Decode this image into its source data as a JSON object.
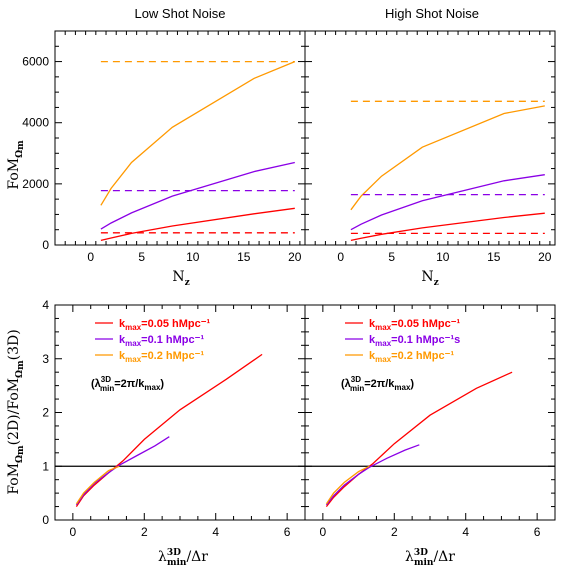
{
  "chart_data": [
    {
      "type": "line",
      "title": "Low Shot Noise",
      "xlabel": "N_z",
      "ylabel": "FoM_Ω_m",
      "xlim": [
        -3.5,
        21
      ],
      "ylim": [
        0,
        7000
      ],
      "xticks": [
        "0",
        "5",
        "10",
        "15",
        "20"
      ],
      "yticks": [
        "0",
        "2000",
        "4000",
        "6000"
      ],
      "series": [
        {
          "color": "#ff0000",
          "dashed": false,
          "x": [
            1,
            2,
            4,
            8,
            16,
            20
          ],
          "y": [
            150,
            230,
            380,
            620,
            1020,
            1200
          ]
        },
        {
          "color": "#8a00e6",
          "dashed": false,
          "x": [
            1,
            2,
            4,
            8,
            16,
            20
          ],
          "y": [
            520,
            720,
            1050,
            1600,
            2400,
            2700
          ]
        },
        {
          "color": "#ff9900",
          "dashed": false,
          "x": [
            1,
            2,
            4,
            8,
            16,
            20
          ],
          "y": [
            1300,
            1850,
            2700,
            3850,
            5450,
            6000
          ]
        },
        {
          "color": "#ff0000",
          "dashed": true,
          "x": [
            1,
            20
          ],
          "y": [
            400,
            400
          ]
        },
        {
          "color": "#8a00e6",
          "dashed": true,
          "x": [
            1,
            20
          ],
          "y": [
            1780,
            1780
          ]
        },
        {
          "color": "#ff9900",
          "dashed": true,
          "x": [
            1,
            20
          ],
          "y": [
            6000,
            6000
          ]
        }
      ]
    },
    {
      "type": "line",
      "title": "High Shot Noise",
      "xlabel": "N_z",
      "ylabel": "",
      "xlim": [
        -3.5,
        21
      ],
      "ylim": [
        0,
        7000
      ],
      "xticks": [
        "0",
        "5",
        "10",
        "15",
        "20"
      ],
      "yticks": [],
      "series": [
        {
          "color": "#ff0000",
          "dashed": false,
          "x": [
            1,
            2,
            4,
            8,
            16,
            20
          ],
          "y": [
            150,
            220,
            350,
            560,
            900,
            1040
          ]
        },
        {
          "color": "#8a00e6",
          "dashed": false,
          "x": [
            1,
            2,
            4,
            8,
            16,
            20
          ],
          "y": [
            500,
            680,
            980,
            1450,
            2100,
            2300
          ]
        },
        {
          "color": "#ff9900",
          "dashed": false,
          "x": [
            1,
            2,
            4,
            8,
            16,
            20
          ],
          "y": [
            1150,
            1600,
            2250,
            3200,
            4300,
            4550
          ]
        },
        {
          "color": "#ff0000",
          "dashed": true,
          "x": [
            1,
            20
          ],
          "y": [
            380,
            380
          ]
        },
        {
          "color": "#8a00e6",
          "dashed": true,
          "x": [
            1,
            20
          ],
          "y": [
            1650,
            1650
          ]
        },
        {
          "color": "#ff9900",
          "dashed": true,
          "x": [
            1,
            20
          ],
          "y": [
            4700,
            4700
          ]
        }
      ]
    },
    {
      "type": "line",
      "title": "",
      "xlabel": "λ_min^3D/Δr",
      "ylabel": "FoM_Ω_m(2D)/FoM_Ω_m(3D)",
      "xlim": [
        -0.5,
        6.5
      ],
      "ylim": [
        0,
        4
      ],
      "hline": 1,
      "xticks": [
        "0",
        "2",
        "4",
        "6"
      ],
      "yticks": [
        "0",
        "1",
        "2",
        "3",
        "4"
      ],
      "legend": [
        {
          "label": "k_max=0.05 hMpc⁻¹",
          "color": "#ff0000"
        },
        {
          "label": "k_max=0.1 hMpc⁻¹",
          "color": "#8a00e6"
        },
        {
          "label": "k_max=0.2 hMpc⁻¹",
          "color": "#ff9900"
        }
      ],
      "note": "(λ_min^3D=2π/k_max)",
      "series": [
        {
          "color": "#ff0000",
          "dashed": false,
          "x": [
            0.1,
            0.3,
            0.6,
            1.0,
            1.4,
            2.0,
            3.0,
            4.3,
            5.3
          ],
          "y": [
            0.25,
            0.45,
            0.65,
            0.88,
            1.1,
            1.5,
            2.05,
            2.62,
            3.08
          ]
        },
        {
          "color": "#8a00e6",
          "dashed": false,
          "x": [
            0.1,
            0.3,
            0.6,
            1.0,
            1.3,
            1.8,
            2.3,
            2.7
          ],
          "y": [
            0.28,
            0.47,
            0.68,
            0.88,
            1.02,
            1.2,
            1.38,
            1.55
          ]
        },
        {
          "color": "#ff9900",
          "dashed": false,
          "x": [
            0.1,
            0.3,
            0.6,
            1.0,
            1.3
          ],
          "y": [
            0.3,
            0.5,
            0.7,
            0.92,
            1.0
          ]
        }
      ]
    },
    {
      "type": "line",
      "title": "",
      "xlabel": "λ_min^3D/Δr",
      "ylabel": "",
      "xlim": [
        -0.5,
        6.5
      ],
      "ylim": [
        0,
        4
      ],
      "hline": 1,
      "xticks": [
        "0",
        "2",
        "4",
        "6"
      ],
      "yticks": [],
      "legend": [
        {
          "label": "k_max=0.05 hMpc⁻¹",
          "color": "#ff0000"
        },
        {
          "label": "k_max=0.1 hMpc⁻¹s",
          "color": "#8a00e6"
        },
        {
          "label": "k_max=0.2 hMpc⁻¹",
          "color": "#ff9900"
        }
      ],
      "note": "(λ_min^3D=2π/k_max)",
      "series": [
        {
          "color": "#ff0000",
          "dashed": false,
          "x": [
            0.1,
            0.3,
            0.6,
            1.0,
            1.4,
            2.0,
            3.0,
            4.3,
            5.3
          ],
          "y": [
            0.25,
            0.42,
            0.62,
            0.85,
            1.05,
            1.42,
            1.95,
            2.45,
            2.75
          ]
        },
        {
          "color": "#8a00e6",
          "dashed": false,
          "x": [
            0.1,
            0.3,
            0.6,
            1.0,
            1.3,
            1.8,
            2.3,
            2.7
          ],
          "y": [
            0.28,
            0.45,
            0.65,
            0.85,
            0.98,
            1.15,
            1.3,
            1.4
          ]
        },
        {
          "color": "#ff9900",
          "dashed": false,
          "x": [
            0.1,
            0.3,
            0.6,
            1.0,
            1.3
          ],
          "y": [
            0.3,
            0.5,
            0.7,
            0.9,
            1.0
          ]
        }
      ]
    }
  ]
}
